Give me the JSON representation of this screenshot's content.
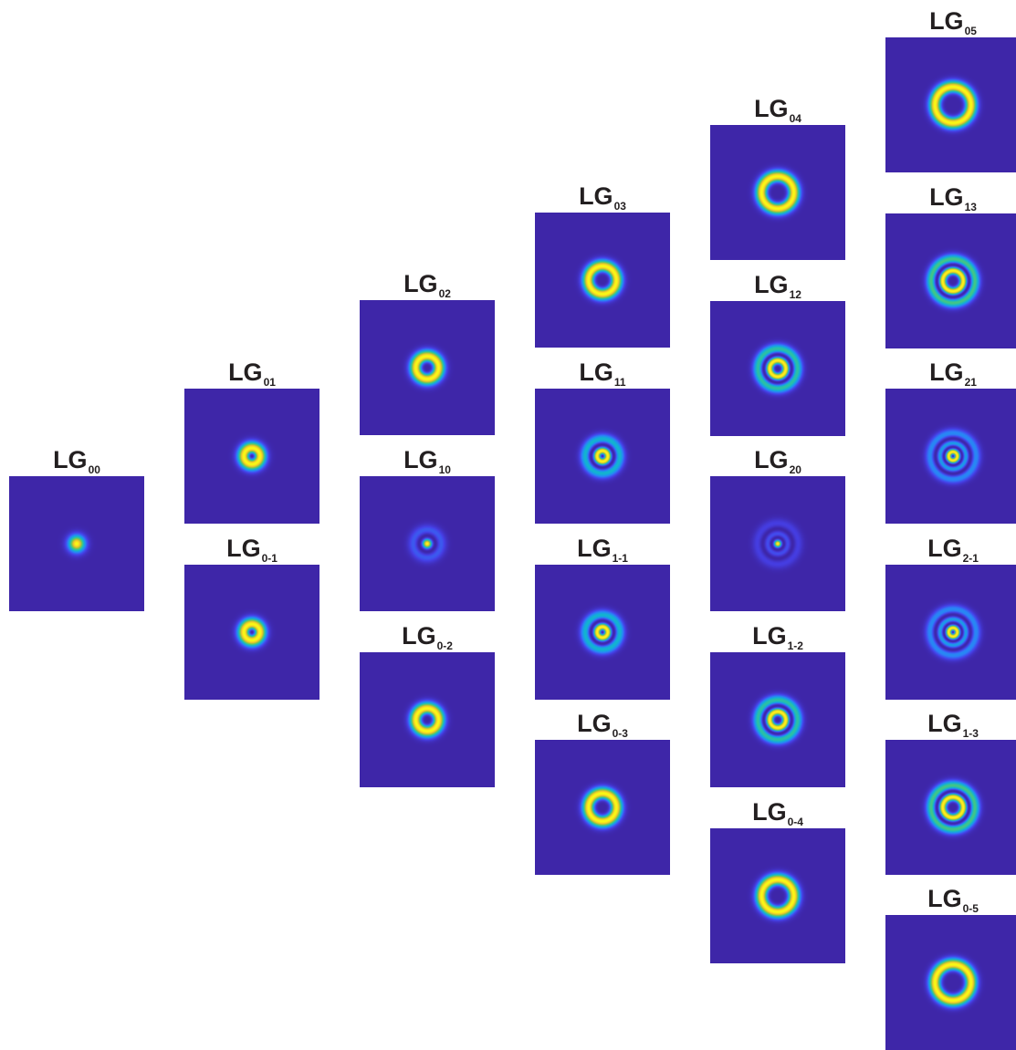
{
  "background_color": "#3f2aa2",
  "colormap": [
    "#3e26a8",
    "#4640e8",
    "#2d7ff9",
    "#10b0d8",
    "#35c496",
    "#8bc73f",
    "#f2c12e",
    "#f9fb14"
  ],
  "modes": [
    {
      "id": "00",
      "label": "LG",
      "sub": "00",
      "p": 0,
      "l": 0
    },
    {
      "id": "01",
      "label": "LG",
      "sub": "01",
      "p": 0,
      "l": 1
    },
    {
      "id": "0m1",
      "label": "LG",
      "sub": "0-1",
      "p": 0,
      "l": -1
    },
    {
      "id": "02",
      "label": "LG",
      "sub": "02",
      "p": 0,
      "l": 2
    },
    {
      "id": "10",
      "label": "LG",
      "sub": "10",
      "p": 1,
      "l": 0
    },
    {
      "id": "0m2",
      "label": "LG",
      "sub": "0-2",
      "p": 0,
      "l": -2
    },
    {
      "id": "03",
      "label": "LG",
      "sub": "03",
      "p": 0,
      "l": 3
    },
    {
      "id": "11",
      "label": "LG",
      "sub": "11",
      "p": 1,
      "l": 1
    },
    {
      "id": "1m1",
      "label": "LG",
      "sub": "1-1",
      "p": 1,
      "l": -1
    },
    {
      "id": "0m3",
      "label": "LG",
      "sub": "0-3",
      "p": 0,
      "l": -3
    },
    {
      "id": "04",
      "label": "LG",
      "sub": "04",
      "p": 0,
      "l": 4
    },
    {
      "id": "12",
      "label": "LG",
      "sub": "12",
      "p": 1,
      "l": 2
    },
    {
      "id": "20",
      "label": "LG",
      "sub": "20",
      "p": 2,
      "l": 0
    },
    {
      "id": "1m2",
      "label": "LG",
      "sub": "1-2",
      "p": 1,
      "l": -2
    },
    {
      "id": "0m4",
      "label": "LG",
      "sub": "0-4",
      "p": 0,
      "l": -4
    },
    {
      "id": "05",
      "label": "LG",
      "sub": "05",
      "p": 0,
      "l": 5
    },
    {
      "id": "13",
      "label": "LG",
      "sub": "13",
      "p": 1,
      "l": 3
    },
    {
      "id": "21",
      "label": "LG",
      "sub": "21",
      "p": 2,
      "l": 1
    },
    {
      "id": "2m1",
      "label": "LG",
      "sub": "2-1",
      "p": 2,
      "l": -1
    },
    {
      "id": "1m3",
      "label": "LG",
      "sub": "1-3",
      "p": 1,
      "l": -3
    },
    {
      "id": "0m5",
      "label": "LG",
      "sub": "0-5",
      "p": 0,
      "l": -5
    }
  ]
}
